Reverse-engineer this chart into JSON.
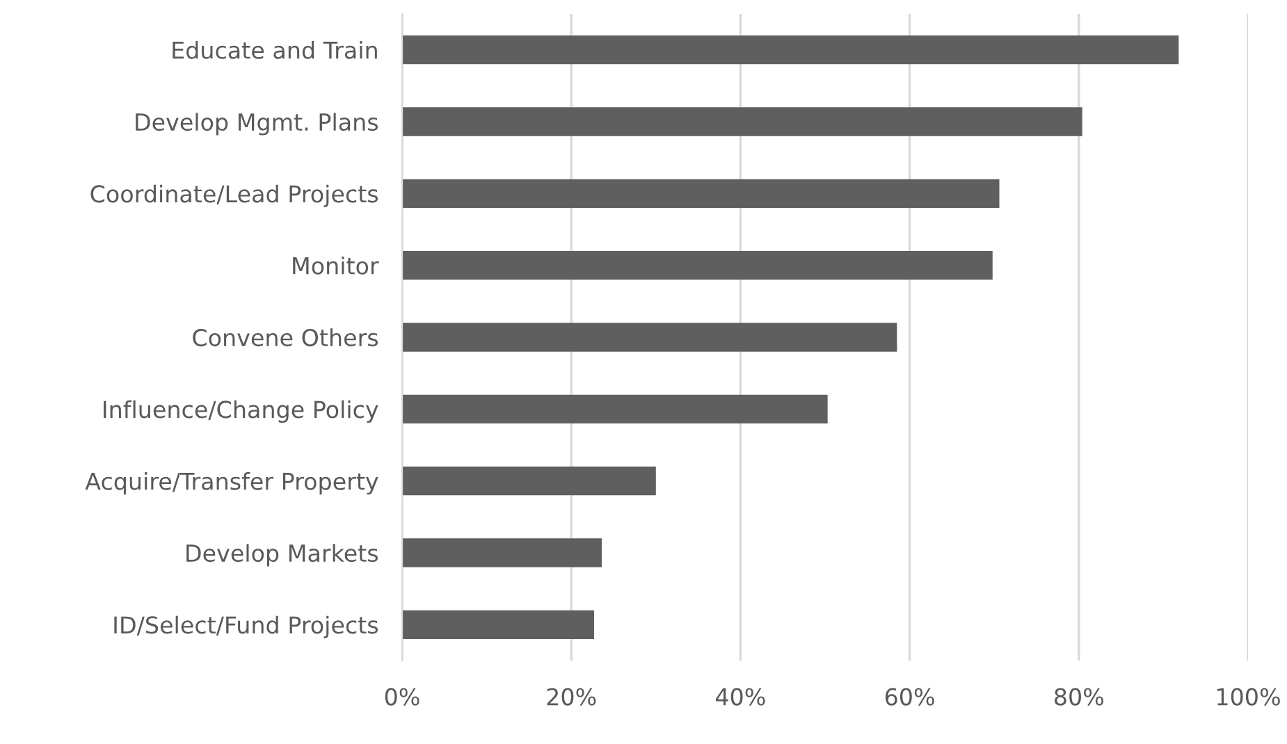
{
  "chart_data": {
    "type": "bar",
    "orientation": "horizontal",
    "categories": [
      "Educate and Train",
      "Develop Mgmt. Plans",
      "Coordinate/Lead Projects",
      "Monitor",
      "Convene Others",
      "Influence/Change Policy",
      "Acquire/Transfer Property",
      "Develop Markets",
      "ID/Select/Fund Projects"
    ],
    "values": [
      91.8,
      80.4,
      70.6,
      69.8,
      58.5,
      50.3,
      30.0,
      23.6,
      22.7
    ],
    "color": "#5f5f5f",
    "xlim": [
      0,
      100
    ],
    "xticks": [
      {
        "value": 0,
        "label": "0%"
      },
      {
        "value": 20,
        "label": "20%"
      },
      {
        "value": 40,
        "label": "40%"
      },
      {
        "value": 60,
        "label": "60%"
      },
      {
        "value": 80,
        "label": "80%"
      },
      {
        "value": 100,
        "label": "100%"
      }
    ],
    "grid": "x"
  }
}
